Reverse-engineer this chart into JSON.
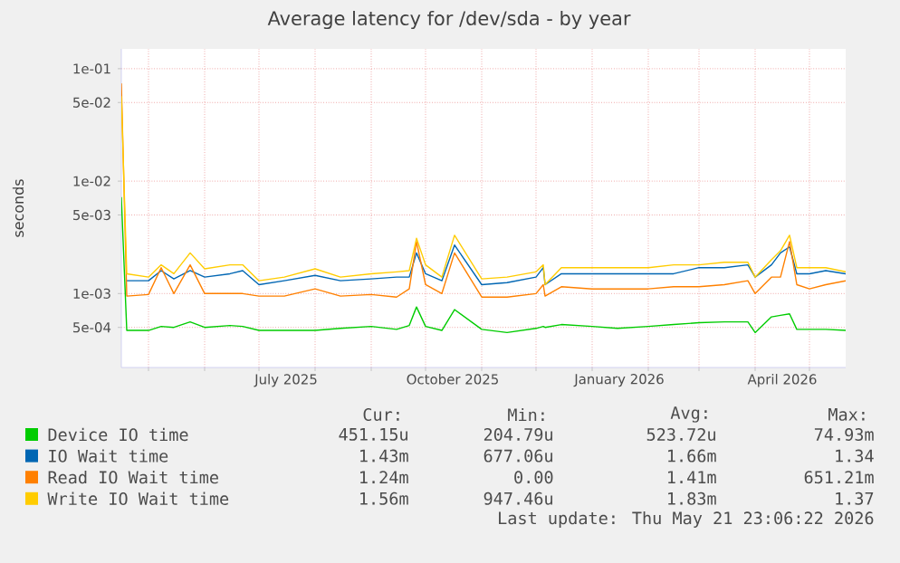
{
  "chart_data": {
    "type": "line",
    "title": "Average latency for /dev/sda - by year",
    "ylabel": "seconds",
    "log": "y",
    "grid": true,
    "legend": "bottom",
    "x": [
      "2025-04-16",
      "2025-04-19",
      "2025-05-01",
      "2025-05-08",
      "2025-05-15",
      "2025-05-24",
      "2025-06-01",
      "2025-06-15",
      "2025-06-22",
      "2025-07-01",
      "2025-07-15",
      "2025-08-01",
      "2025-08-15",
      "2025-09-01",
      "2025-09-15",
      "2025-09-22",
      "2025-09-26",
      "2025-10-01",
      "2025-10-10",
      "2025-10-17",
      "2025-11-01",
      "2025-11-15",
      "2025-12-01",
      "2025-12-05",
      "2025-12-06",
      "2025-12-15",
      "2026-01-01",
      "2026-01-15",
      "2026-02-01",
      "2026-02-15",
      "2026-03-01",
      "2026-03-15",
      "2026-03-28",
      "2026-04-01",
      "2026-04-10",
      "2026-04-15",
      "2026-04-20",
      "2026-04-24",
      "2026-05-01",
      "2026-05-10",
      "2026-05-21"
    ],
    "xlim": [
      "2025-04-16",
      "2026-05-21"
    ],
    "xticks": [
      {
        "value": "2025-05-01",
        "label": null
      },
      {
        "value": "2025-06-01",
        "label": null
      },
      {
        "value": "2025-07-01",
        "label": null
      },
      {
        "value": "2025-08-01",
        "label": null
      },
      {
        "value": "2025-09-01",
        "label": null
      },
      {
        "value": "2025-10-01",
        "label": null
      },
      {
        "value": "2025-11-01",
        "label": null
      },
      {
        "value": "2025-12-01",
        "label": null
      },
      {
        "value": "2026-01-01",
        "label": null
      },
      {
        "value": "2026-02-01",
        "label": null
      },
      {
        "value": "2026-03-01",
        "label": null
      },
      {
        "value": "2026-04-01",
        "label": null
      },
      {
        "value": "2026-05-01",
        "label": null
      },
      {
        "value": "2025-07-16",
        "label": "July 2025"
      },
      {
        "value": "2025-10-16",
        "label": "October 2025"
      },
      {
        "value": "2026-01-16",
        "label": "January 2026"
      },
      {
        "value": "2026-04-16",
        "label": "April 2026"
      }
    ],
    "ylim": [
      0.00022,
      0.15
    ],
    "yticks": [
      {
        "value": 0.0005,
        "label": "5e-04"
      },
      {
        "value": 0.001,
        "label": "1e-03"
      },
      {
        "value": 0.005,
        "label": "5e-03"
      },
      {
        "value": 0.01,
        "label": "1e-02"
      },
      {
        "value": 0.05,
        "label": "5e-02"
      },
      {
        "value": 0.1,
        "label": "1e-01"
      }
    ],
    "series": [
      {
        "name": "Device IO time",
        "color": "#00cc00",
        "values": [
          0.0072,
          0.00047,
          0.00047,
          0.00051,
          0.0005,
          0.00056,
          0.0005,
          0.00052,
          0.00051,
          0.00047,
          0.00047,
          0.00047,
          0.00049,
          0.00051,
          0.00048,
          0.00052,
          0.00076,
          0.00051,
          0.00047,
          0.00072,
          0.00048,
          0.00045,
          0.00049,
          0.00051,
          0.0005,
          0.00053,
          0.00051,
          0.00049,
          0.00051,
          0.00053,
          0.00055,
          0.00056,
          0.00056,
          0.00045,
          0.00062,
          0.00064,
          0.00066,
          0.00048,
          0.00048,
          0.00048,
          0.00047
        ]
      },
      {
        "name": "IO Wait time",
        "color": "#0066b3",
        "values": [
          null,
          0.0013,
          0.0013,
          0.0016,
          0.00135,
          0.0016,
          0.0014,
          0.0015,
          0.0016,
          0.0012,
          0.0013,
          0.00145,
          0.0013,
          0.00135,
          0.0014,
          0.0014,
          0.0023,
          0.0015,
          0.0013,
          0.0027,
          0.0012,
          0.00125,
          0.0014,
          0.0017,
          0.0012,
          0.0015,
          0.0015,
          0.0015,
          0.0015,
          0.0015,
          0.0017,
          0.0017,
          0.0018,
          0.0014,
          0.0018,
          0.0023,
          0.0026,
          0.0015,
          0.0015,
          0.0016,
          0.0015
        ]
      },
      {
        "name": "Read IO Wait time",
        "color": "#ff8000",
        "values": [
          0.074,
          0.00095,
          0.00098,
          0.0017,
          0.001,
          0.0018,
          0.001,
          0.001,
          0.001,
          0.00095,
          0.00095,
          0.0011,
          0.00095,
          0.00098,
          0.00093,
          0.0011,
          0.0029,
          0.0012,
          0.001,
          0.0023,
          0.00093,
          0.00093,
          0.001,
          0.0012,
          0.00095,
          0.00115,
          0.0011,
          0.0011,
          0.0011,
          0.00115,
          0.00115,
          0.0012,
          0.0013,
          0.001,
          0.0014,
          0.0014,
          0.0029,
          0.0012,
          0.0011,
          0.0012,
          0.0013
        ]
      },
      {
        "name": "Write IO Wait time",
        "color": "#ffcc00",
        "values": [
          0.057,
          0.0015,
          0.0014,
          0.0018,
          0.0015,
          0.0023,
          0.00166,
          0.0018,
          0.0018,
          0.0013,
          0.0014,
          0.00166,
          0.0014,
          0.0015,
          0.00156,
          0.0016,
          0.0031,
          0.0018,
          0.0014,
          0.0033,
          0.00135,
          0.0014,
          0.00156,
          0.0018,
          0.0012,
          0.0017,
          0.0017,
          0.0017,
          0.0017,
          0.0018,
          0.0018,
          0.0019,
          0.0019,
          0.0014,
          0.002,
          0.0024,
          0.0033,
          0.0017,
          0.0017,
          0.0017,
          0.00156
        ]
      }
    ],
    "annotations": [
      "Cur:",
      "Min:",
      "Avg:",
      "Max:",
      "451.15u",
      "204.79u",
      "523.72u",
      "74.93m",
      "1.43m",
      "677.06u",
      "1.66m",
      "1.34",
      "1.24m",
      "0.00",
      "1.41m",
      "651.21m",
      "1.56m",
      "947.46u",
      "1.83m",
      "1.37",
      "Last update: Thu May 21 23:06:22 2026"
    ]
  }
}
